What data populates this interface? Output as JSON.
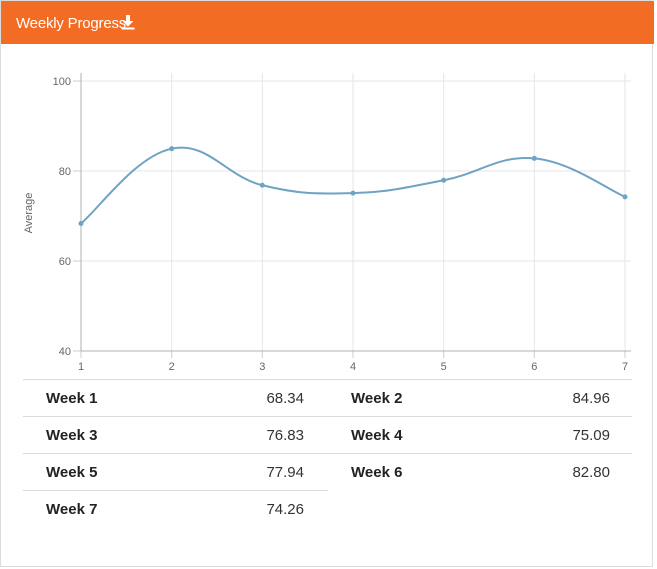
{
  "header": {
    "title": "Weekly Progress",
    "icon": "download-icon",
    "color": "#f26c23"
  },
  "chart_data": {
    "type": "line",
    "x": [
      1,
      2,
      3,
      4,
      5,
      6,
      7
    ],
    "series": [
      {
        "values": [
          68.34,
          84.96,
          76.83,
          75.09,
          77.94,
          82.8,
          74.26
        ],
        "color": "#6fa3c4"
      }
    ],
    "ylabel": "Average",
    "xlabel": "",
    "ylim": [
      40,
      100
    ],
    "yticks": [
      40,
      60,
      80,
      100
    ],
    "xticks": [
      1,
      2,
      3,
      4,
      5,
      6,
      7
    ],
    "grid": true,
    "smooth": true
  },
  "table": {
    "rows": [
      [
        {
          "label": "Week 1",
          "value": "68.34"
        },
        {
          "label": "Week 2",
          "value": "84.96"
        }
      ],
      [
        {
          "label": "Week 3",
          "value": "76.83"
        },
        {
          "label": "Week 4",
          "value": "75.09"
        }
      ],
      [
        {
          "label": "Week 5",
          "value": "77.94"
        },
        {
          "label": "Week 6",
          "value": "82.80"
        }
      ],
      [
        {
          "label": "Week 7",
          "value": "74.26"
        }
      ]
    ]
  }
}
